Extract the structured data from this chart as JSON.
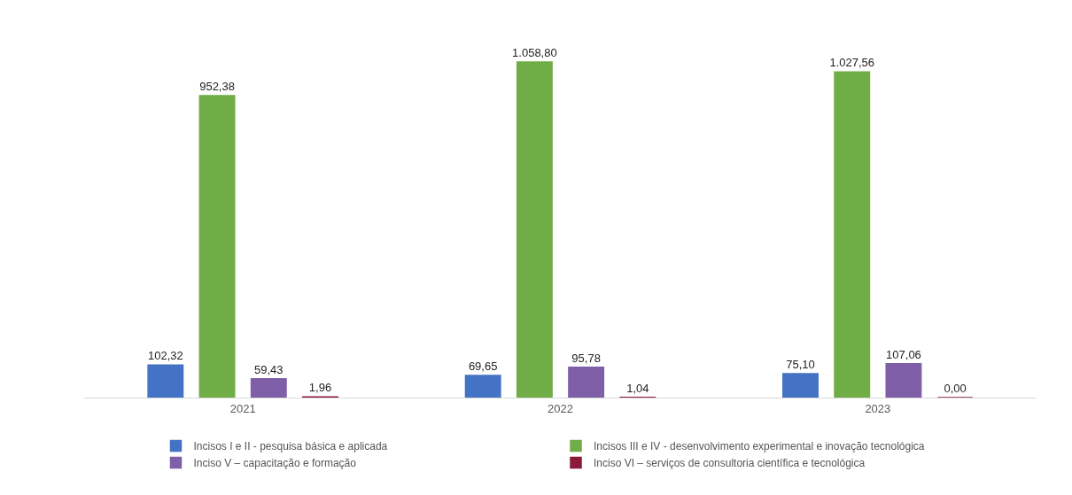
{
  "chart_data": {
    "type": "bar",
    "categories": [
      "2021",
      "2022",
      "2023"
    ],
    "series": [
      {
        "name": "Incisos I e II - pesquisa básica e aplicada",
        "color": "#4472c4",
        "values": [
          102.32,
          69.65,
          75.1
        ],
        "value_labels": [
          "102,32",
          "69,65",
          "75,10"
        ]
      },
      {
        "name": "Incisos III e IV - desenvolvimento experimental e inovação tecnológica",
        "color": "#70ad47",
        "values": [
          952.38,
          1058.8,
          1027.56
        ],
        "value_labels": [
          "952,38",
          "1.058,80",
          "1.027,56"
        ]
      },
      {
        "name": "Inciso V – capacitação e formação",
        "color": "#7f5fa8",
        "values": [
          59.43,
          95.78,
          107.06
        ],
        "value_labels": [
          "59,43",
          "95,78",
          "107,06"
        ]
      },
      {
        "name": "Inciso VI – serviços de consultoria científica e tecnológica",
        "color": "#8b1a3a",
        "values": [
          1.96,
          1.04,
          0.0
        ],
        "value_labels": [
          "1,96",
          "1,04",
          "0,00"
        ]
      }
    ],
    "legend": "bottom",
    "tick_labels": "x"
  }
}
